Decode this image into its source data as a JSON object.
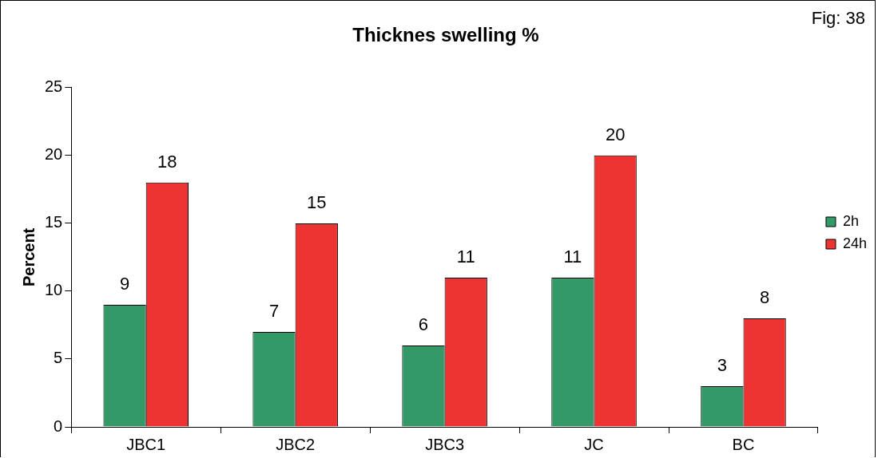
{
  "chart_data": {
    "type": "bar",
    "title": "Thicknes swelling %",
    "ylabel": "Percent",
    "annotations": [
      "Fig: 38"
    ],
    "categories": [
      "JBC1",
      "JBC2",
      "JBC3",
      "JC",
      "BC"
    ],
    "series": [
      {
        "name": "2h",
        "color": "#339966",
        "values": [
          9,
          7,
          6,
          11,
          3
        ]
      },
      {
        "name": "24h",
        "color": "#ee3333",
        "values": [
          18,
          15,
          11,
          20,
          8
        ]
      }
    ],
    "ylim": [
      0,
      25
    ],
    "yticks": [
      0,
      5,
      10,
      15,
      20,
      25
    ],
    "grid": false,
    "legend": "right",
    "data_labels": true
  }
}
